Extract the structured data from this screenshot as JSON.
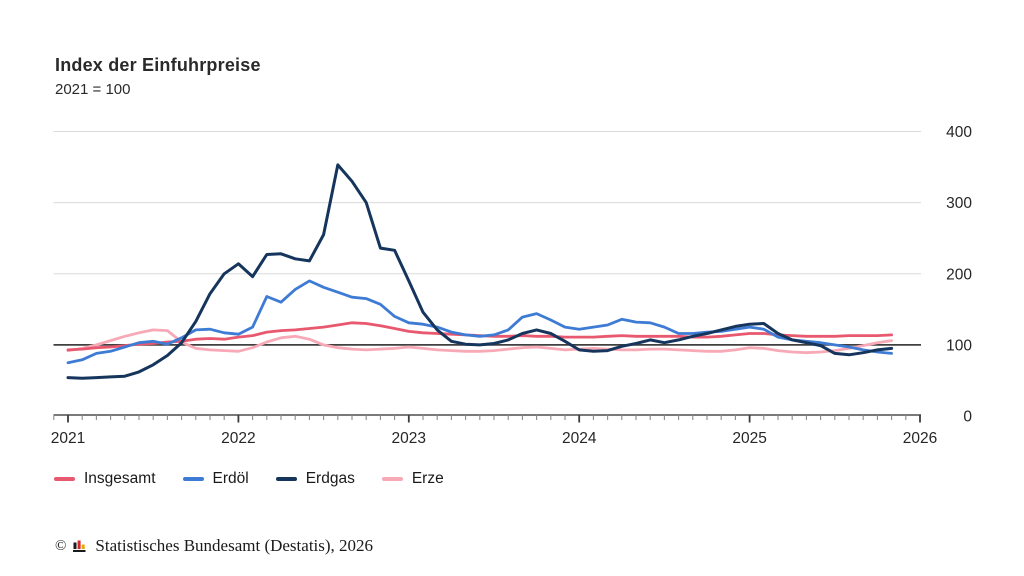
{
  "title": "Index der Einfuhrpreise",
  "subtitle": "2021 = 100",
  "footer": {
    "copyright": "©",
    "source_text": "Statistisches Bundesamt (Destatis), 2026"
  },
  "colors": {
    "background": "#ffffff",
    "grid_light": "#dadada",
    "reference_line": "#404040",
    "axis_line": "#4f4f4f",
    "tick_minor": "#8a8a8a",
    "tick_major": "#3c3c3c",
    "text": "#262626",
    "logo_black": "#1a1a1a",
    "logo_red": "#d22a2a",
    "logo_gold": "#e8a800"
  },
  "chart_data": {
    "type": "line",
    "title": "Index der Einfuhrpreise",
    "subtitle": "2021 = 100",
    "x_unit": "month",
    "x_start": "2021-01",
    "x_end": "2025-11",
    "x_tick_labels": [
      "2021",
      "2022",
      "2023",
      "2024",
      "2025",
      "2026"
    ],
    "y_ticks": [
      0,
      100,
      200,
      300,
      400
    ],
    "ylim": [
      0,
      400
    ],
    "reference_line": 100,
    "grid": "horizontal",
    "legend_position": "bottom",
    "y_labels_side": "right",
    "series": [
      {
        "name": "Insgesamt",
        "color": "#e8586f",
        "width": 2.8,
        "values": [
          93,
          94,
          96,
          97,
          99,
          101,
          102,
          104,
          105,
          108,
          109,
          108,
          111,
          113,
          118,
          120,
          121,
          123,
          125,
          128,
          131,
          130,
          127,
          123,
          119,
          117,
          116,
          115,
          114,
          113,
          112,
          112,
          113,
          112,
          112,
          111,
          111,
          111,
          112,
          113,
          112,
          112,
          112,
          112,
          111,
          111,
          112,
          114,
          116,
          116,
          114,
          113,
          112,
          112,
          112,
          113,
          113,
          113,
          114
        ]
      },
      {
        "name": "Erdöl",
        "color": "#3e7bd4",
        "width": 2.8,
        "values": [
          75,
          79,
          88,
          91,
          97,
          103,
          105,
          101,
          110,
          121,
          122,
          117,
          115,
          125,
          168,
          160,
          178,
          190,
          181,
          174,
          167,
          165,
          157,
          140,
          131,
          129,
          125,
          118,
          114,
          112,
          114,
          121,
          139,
          144,
          135,
          125,
          122,
          125,
          128,
          136,
          132,
          131,
          125,
          116,
          116,
          118,
          119,
          122,
          125,
          122,
          111,
          107,
          105,
          103,
          100,
          97,
          93,
          90,
          88
        ]
      },
      {
        "name": "Erdgas",
        "color": "#16355d",
        "width": 3,
        "values": [
          54,
          53,
          54,
          55,
          56,
          62,
          72,
          85,
          103,
          133,
          172,
          200,
          214,
          196,
          227,
          228,
          221,
          218,
          255,
          353,
          330,
          300,
          236,
          233,
          190,
          146,
          121,
          105,
          101,
          100,
          102,
          107,
          116,
          121,
          116,
          105,
          93,
          91,
          92,
          98,
          102,
          107,
          103,
          107,
          112,
          116,
          121,
          126,
          129,
          130,
          116,
          107,
          103,
          99,
          88,
          86,
          89,
          93,
          95
        ]
      },
      {
        "name": "Erze",
        "color": "#f8a9b6",
        "width": 2.8,
        "values": [
          92,
          95,
          100,
          106,
          112,
          117,
          121,
          120,
          104,
          95,
          93,
          92,
          91,
          96,
          104,
          110,
          112,
          108,
          100,
          96,
          94,
          93,
          94,
          95,
          97,
          95,
          93,
          92,
          91,
          91,
          92,
          94,
          96,
          97,
          95,
          93,
          94,
          95,
          94,
          93,
          93,
          94,
          94,
          93,
          92,
          91,
          91,
          93,
          96,
          95,
          92,
          90,
          89,
          90,
          92,
          95,
          99,
          103,
          106
        ]
      }
    ]
  }
}
